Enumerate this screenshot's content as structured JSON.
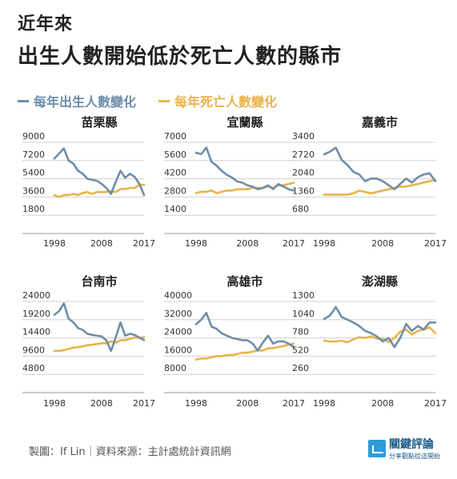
{
  "header": {
    "title_line1": "近年來",
    "title_line2": "出生人數開始低於死亡人數的縣市"
  },
  "legend": {
    "births_label": "每年出生人數變化",
    "deaths_label": "每年死亡人數變化"
  },
  "colors": {
    "births": "#6e8ea8",
    "deaths": "#e8b34a",
    "grid": "#d0d0d0",
    "axis_text": "#333333"
  },
  "footer": {
    "credit": "製圖：If Lin｜資料來源：主計處統計資訊網"
  },
  "logo": {
    "name": "關鍵評論",
    "tagline": "分享觀點從這開始"
  },
  "chart_data": [
    {
      "type": "line",
      "title": "苗栗縣",
      "x": [
        1998,
        1999,
        2000,
        2001,
        2002,
        2003,
        2004,
        2005,
        2006,
        2007,
        2008,
        2009,
        2010,
        2011,
        2012,
        2013,
        2014,
        2015,
        2016,
        2017
      ],
      "xticks": [
        1998,
        2008,
        2017
      ],
      "yticks": [
        1800,
        3600,
        5400,
        7200,
        9000
      ],
      "ylim": [
        0,
        9000
      ],
      "series": [
        {
          "values": [
            7400,
            7900,
            8400,
            7200,
            6900,
            6200,
            5900,
            5400,
            5300,
            5200,
            4900,
            4500,
            3900,
            5100,
            6200,
            5500,
            5900,
            5600,
            4900,
            3800
          ]
        },
        {
          "values": [
            3800,
            3600,
            3800,
            3800,
            3900,
            3800,
            4000,
            4100,
            3900,
            4100,
            4100,
            4100,
            4200,
            4100,
            4400,
            4400,
            4500,
            4500,
            4800,
            4800
          ]
        }
      ]
    },
    {
      "type": "line",
      "title": "宜蘭縣",
      "x": [
        1998,
        1999,
        2000,
        2001,
        2002,
        2003,
        2004,
        2005,
        2006,
        2007,
        2008,
        2009,
        2010,
        2011,
        2012,
        2013,
        2014,
        2015,
        2016,
        2017
      ],
      "xticks": [
        1998,
        2008,
        2017
      ],
      "yticks": [
        1400,
        2800,
        4200,
        5600,
        7000
      ],
      "ylim": [
        0,
        7000
      ],
      "series": [
        {
          "values": [
            6200,
            6100,
            6600,
            5500,
            5200,
            4800,
            4500,
            4300,
            4000,
            3900,
            3700,
            3600,
            3400,
            3500,
            3700,
            3400,
            3800,
            3600,
            3400,
            3300
          ]
        },
        {
          "values": [
            3100,
            3200,
            3200,
            3300,
            3100,
            3200,
            3300,
            3300,
            3400,
            3400,
            3400,
            3500,
            3500,
            3500,
            3600,
            3500,
            3700,
            3700,
            3800,
            3900
          ]
        }
      ]
    },
    {
      "type": "line",
      "title": "嘉義市",
      "x": [
        1998,
        1999,
        2000,
        2001,
        2002,
        2003,
        2004,
        2005,
        2006,
        2007,
        2008,
        2009,
        2010,
        2011,
        2012,
        2013,
        2014,
        2015,
        2016,
        2017
      ],
      "xticks": [
        1998,
        2008,
        2017
      ],
      "yticks": [
        680,
        1360,
        2040,
        2720,
        3400
      ],
      "ylim": [
        0,
        3400
      ],
      "series": [
        {
          "values": [
            2950,
            3050,
            3200,
            2750,
            2550,
            2300,
            2200,
            1950,
            2050,
            2050,
            1950,
            1800,
            1650,
            1850,
            2050,
            1900,
            2100,
            2200,
            2250,
            1950
          ]
        },
        {
          "values": [
            1450,
            1450,
            1450,
            1450,
            1450,
            1500,
            1600,
            1550,
            1500,
            1550,
            1600,
            1650,
            1700,
            1750,
            1750,
            1800,
            1850,
            1900,
            1950,
            2000
          ]
        }
      ]
    },
    {
      "type": "line",
      "title": "台南市",
      "x": [
        1998,
        1999,
        2000,
        2001,
        2002,
        2003,
        2004,
        2005,
        2006,
        2007,
        2008,
        2009,
        2010,
        2011,
        2012,
        2013,
        2014,
        2015,
        2016,
        2017
      ],
      "xticks": [
        1998,
        2008,
        2017
      ],
      "yticks": [
        4800,
        9600,
        14400,
        19200,
        24000
      ],
      "ylim": [
        0,
        24000
      ],
      "series": [
        {
          "values": [
            20500,
            21500,
            23500,
            19500,
            18500,
            17000,
            16500,
            15500,
            15200,
            15000,
            14800,
            13800,
            11000,
            14500,
            18500,
            15000,
            15500,
            15200,
            14500,
            13800
          ]
        },
        {
          "values": [
            11000,
            11000,
            11200,
            11500,
            11800,
            12000,
            12200,
            12500,
            12600,
            12800,
            13000,
            13000,
            13500,
            13200,
            13800,
            13800,
            14200,
            14500,
            14400,
            14600
          ]
        }
      ]
    },
    {
      "type": "line",
      "title": "高雄市",
      "x": [
        1998,
        1999,
        2000,
        2001,
        2002,
        2003,
        2004,
        2005,
        2006,
        2007,
        2008,
        2009,
        2010,
        2011,
        2012,
        2013,
        2014,
        2015,
        2016,
        2017
      ],
      "xticks": [
        1998,
        2008,
        2017
      ],
      "yticks": [
        8000,
        16000,
        24000,
        32000,
        40000
      ],
      "ylim": [
        0,
        40000
      ],
      "series": [
        {
          "values": [
            30000,
            32000,
            35000,
            29000,
            28000,
            26000,
            25000,
            24000,
            23500,
            23000,
            23000,
            21500,
            18500,
            22000,
            25000,
            21500,
            22500,
            22500,
            21500,
            20000
          ]
        },
        {
          "values": [
            14500,
            15000,
            15000,
            15500,
            16000,
            16000,
            16500,
            16500,
            17000,
            17500,
            17500,
            18000,
            18500,
            18500,
            19500,
            19500,
            20000,
            20500,
            21000,
            21500
          ]
        }
      ]
    },
    {
      "type": "line",
      "title": "澎湖縣",
      "x": [
        1998,
        1999,
        2000,
        2001,
        2002,
        2003,
        2004,
        2005,
        2006,
        2007,
        2008,
        2009,
        2010,
        2011,
        2012,
        2013,
        2014,
        2015,
        2016,
        2017
      ],
      "xticks": [
        1998,
        2008,
        2017
      ],
      "yticks": [
        260,
        520,
        780,
        1040,
        1300
      ],
      "ylim": [
        0,
        1300
      ],
      "series": [
        {
          "values": [
            1050,
            1100,
            1220,
            1080,
            1040,
            1000,
            950,
            880,
            850,
            800,
            730,
            780,
            650,
            780,
            980,
            880,
            950,
            900,
            1000,
            1000
          ]
        },
        {
          "values": [
            740,
            730,
            730,
            740,
            720,
            760,
            790,
            780,
            800,
            770,
            770,
            720,
            780,
            870,
            900,
            830,
            880,
            900,
            930,
            850
          ]
        }
      ]
    }
  ]
}
